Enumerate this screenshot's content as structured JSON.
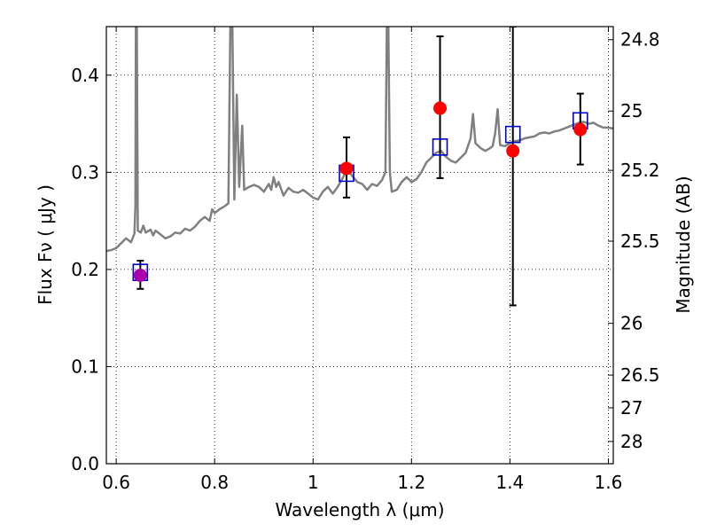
{
  "chart_data": {
    "type": "scatter",
    "xlabel": "Wavelength  λ (μm)",
    "ylabel": "Flux  Fν  ( μJy )",
    "ylabel_right": "Magnitude (AB)",
    "xlim": [
      0.58,
      1.61
    ],
    "ylim": [
      0.0,
      0.45
    ],
    "grid": true,
    "x_ticks": [
      {
        "value": 0.6,
        "label": "0.6"
      },
      {
        "value": 0.8,
        "label": "0.8"
      },
      {
        "value": 1.0,
        "label": "1"
      },
      {
        "value": 1.2,
        "label": "1.2"
      },
      {
        "value": 1.4,
        "label": "1.4"
      },
      {
        "value": 1.6,
        "label": "1.6"
      }
    ],
    "y_ticks": [
      {
        "value": 0.0,
        "label": "0.0"
      },
      {
        "value": 0.1,
        "label": "0.1"
      },
      {
        "value": 0.2,
        "label": "0.2"
      },
      {
        "value": 0.3,
        "label": "0.3"
      },
      {
        "value": 0.4,
        "label": "0.4"
      }
    ],
    "y2_ticks": [
      {
        "value": 24.8,
        "label": "24.8"
      },
      {
        "value": 25.0,
        "label": "25"
      },
      {
        "value": 25.2,
        "label": "25.2"
      },
      {
        "value": 25.5,
        "label": "25.5"
      },
      {
        "value": 26.0,
        "label": "26"
      },
      {
        "value": 26.5,
        "label": "26.5"
      },
      {
        "value": 27.0,
        "label": "27"
      },
      {
        "value": 28.0,
        "label": "28"
      }
    ],
    "spectrum": {
      "color": "#808080",
      "points": [
        [
          0.58,
          0.219
        ],
        [
          0.59,
          0.22
        ],
        [
          0.6,
          0.222
        ],
        [
          0.61,
          0.227
        ],
        [
          0.62,
          0.232
        ],
        [
          0.63,
          0.228
        ],
        [
          0.637,
          0.237
        ],
        [
          0.639,
          0.265
        ],
        [
          0.64,
          0.45
        ],
        [
          0.642,
          0.45
        ],
        [
          0.644,
          0.24
        ],
        [
          0.65,
          0.238
        ],
        [
          0.655,
          0.245
        ],
        [
          0.66,
          0.238
        ],
        [
          0.67,
          0.241
        ],
        [
          0.675,
          0.235
        ],
        [
          0.68,
          0.24
        ],
        [
          0.69,
          0.236
        ],
        [
          0.7,
          0.232
        ],
        [
          0.71,
          0.234
        ],
        [
          0.72,
          0.238
        ],
        [
          0.73,
          0.237
        ],
        [
          0.74,
          0.242
        ],
        [
          0.75,
          0.24
        ],
        [
          0.76,
          0.244
        ],
        [
          0.77,
          0.25
        ],
        [
          0.78,
          0.254
        ],
        [
          0.79,
          0.25
        ],
        [
          0.795,
          0.262
        ],
        [
          0.8,
          0.258
        ],
        [
          0.81,
          0.262
        ],
        [
          0.82,
          0.265
        ],
        [
          0.828,
          0.268
        ],
        [
          0.832,
          0.45
        ],
        [
          0.836,
          0.45
        ],
        [
          0.84,
          0.272
        ],
        [
          0.845,
          0.38
        ],
        [
          0.85,
          0.285
        ],
        [
          0.856,
          0.348
        ],
        [
          0.86,
          0.282
        ],
        [
          0.87,
          0.285
        ],
        [
          0.88,
          0.287
        ],
        [
          0.89,
          0.285
        ],
        [
          0.9,
          0.28
        ],
        [
          0.91,
          0.288
        ],
        [
          0.915,
          0.282
        ],
        [
          0.92,
          0.295
        ],
        [
          0.925,
          0.285
        ],
        [
          0.93,
          0.29
        ],
        [
          0.94,
          0.276
        ],
        [
          0.95,
          0.284
        ],
        [
          0.96,
          0.28
        ],
        [
          0.97,
          0.279
        ],
        [
          0.98,
          0.282
        ],
        [
          0.99,
          0.278
        ],
        [
          1.0,
          0.274
        ],
        [
          1.01,
          0.272
        ],
        [
          1.02,
          0.28
        ],
        [
          1.03,
          0.285
        ],
        [
          1.04,
          0.278
        ],
        [
          1.05,
          0.285
        ],
        [
          1.06,
          0.294
        ],
        [
          1.07,
          0.303
        ],
        [
          1.08,
          0.296
        ],
        [
          1.09,
          0.29
        ],
        [
          1.1,
          0.288
        ],
        [
          1.11,
          0.282
        ],
        [
          1.12,
          0.288
        ],
        [
          1.13,
          0.286
        ],
        [
          1.14,
          0.292
        ],
        [
          1.147,
          0.3
        ],
        [
          1.15,
          0.45
        ],
        [
          1.153,
          0.45
        ],
        [
          1.156,
          0.3
        ],
        [
          1.16,
          0.28
        ],
        [
          1.17,
          0.282
        ],
        [
          1.18,
          0.29
        ],
        [
          1.19,
          0.295
        ],
        [
          1.2,
          0.29
        ],
        [
          1.21,
          0.293
        ],
        [
          1.22,
          0.3
        ],
        [
          1.23,
          0.31
        ],
        [
          1.24,
          0.315
        ],
        [
          1.25,
          0.32
        ],
        [
          1.26,
          0.322
        ],
        [
          1.27,
          0.316
        ],
        [
          1.28,
          0.312
        ],
        [
          1.29,
          0.31
        ],
        [
          1.3,
          0.315
        ],
        [
          1.31,
          0.32
        ],
        [
          1.32,
          0.335
        ],
        [
          1.325,
          0.36
        ],
        [
          1.33,
          0.33
        ],
        [
          1.34,
          0.325
        ],
        [
          1.35,
          0.322
        ],
        [
          1.36,
          0.325
        ],
        [
          1.365,
          0.327
        ],
        [
          1.37,
          0.34
        ],
        [
          1.375,
          0.365
        ],
        [
          1.38,
          0.328
        ],
        [
          1.39,
          0.327
        ],
        [
          1.4,
          0.33
        ],
        [
          1.41,
          0.332
        ],
        [
          1.42,
          0.333
        ],
        [
          1.43,
          0.335
        ],
        [
          1.44,
          0.336
        ],
        [
          1.45,
          0.337
        ],
        [
          1.46,
          0.34
        ],
        [
          1.47,
          0.341
        ],
        [
          1.48,
          0.34
        ],
        [
          1.49,
          0.342
        ],
        [
          1.5,
          0.343
        ],
        [
          1.51,
          0.345
        ],
        [
          1.52,
          0.347
        ],
        [
          1.53,
          0.349
        ],
        [
          1.54,
          0.351
        ],
        [
          1.55,
          0.352
        ],
        [
          1.56,
          0.35
        ],
        [
          1.57,
          0.351
        ],
        [
          1.58,
          0.348
        ],
        [
          1.59,
          0.346
        ],
        [
          1.6,
          0.346
        ],
        [
          1.61,
          0.345
        ]
      ]
    },
    "series": [
      {
        "marker": "open-square",
        "color": "#0000cc",
        "points": [
          {
            "x": 0.649,
            "y": 0.197
          },
          {
            "x": 1.068,
            "y": 0.299
          },
          {
            "x": 1.258,
            "y": 0.326
          },
          {
            "x": 1.406,
            "y": 0.339
          },
          {
            "x": 1.543,
            "y": 0.353
          }
        ]
      },
      {
        "marker": "filled-circle",
        "color": "#ff0000",
        "points": [
          {
            "x": 0.649,
            "y": 0.194,
            "yerr_low": 0.18,
            "yerr_high": 0.209,
            "color": "#aa00aa"
          },
          {
            "x": 1.068,
            "y": 0.304,
            "yerr_low": 0.274,
            "yerr_high": 0.336
          },
          {
            "x": 1.258,
            "y": 0.366,
            "yerr_low": 0.294,
            "yerr_high": 0.44
          },
          {
            "x": 1.406,
            "y": 0.322,
            "yerr_low": 0.163,
            "yerr_high": 0.45
          },
          {
            "x": 1.543,
            "y": 0.344,
            "yerr_low": 0.308,
            "yerr_high": 0.381
          }
        ]
      }
    ]
  }
}
